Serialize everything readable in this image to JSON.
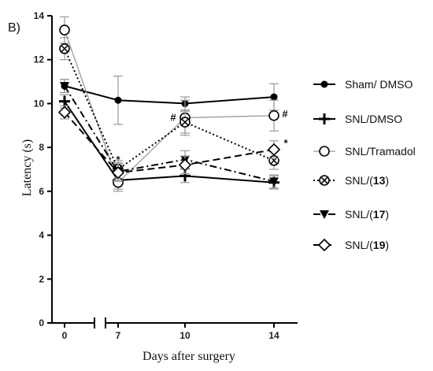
{
  "panel_label": "B)",
  "chart_data": {
    "type": "line",
    "x_positions": [
      0,
      7,
      10,
      14
    ],
    "x_tick_labels": [
      "0",
      "7",
      "10",
      "14"
    ],
    "xlabel": "Days after surgery",
    "ylabel": "Latency (s)",
    "ylim": [
      0,
      14
    ],
    "y_ticks": [
      "0",
      "2",
      "4",
      "6",
      "8",
      "10",
      "12",
      "14"
    ],
    "x_axis_break": "between 0 and 7",
    "grid": false,
    "legend_position": "right",
    "series": [
      {
        "name": "Sham/ DMSO",
        "marker": "filled-circle",
        "line_style": "solid",
        "color": "#000000",
        "values": [
          10.8,
          10.15,
          10.0,
          10.3
        ],
        "errors": [
          0.3,
          1.1,
          0.3,
          0.6
        ],
        "annotations": [
          "",
          "",
          "",
          ""
        ]
      },
      {
        "name": "SNL/DMSO",
        "marker": "plus",
        "line_style": "solid",
        "color": "#000000",
        "values": [
          10.1,
          6.5,
          6.7,
          6.4
        ],
        "errors": [
          0.3,
          0.4,
          0.3,
          0.3
        ],
        "annotations": [
          "",
          "",
          "",
          ""
        ]
      },
      {
        "name": "SNL/Tramadol",
        "marker": "open-circle",
        "line_style": "solid-gray",
        "color": "#999999",
        "values": [
          13.35,
          6.4,
          9.35,
          9.45
        ],
        "errors": [
          0.6,
          0.4,
          0.8,
          0.7
        ],
        "annotations": [
          "",
          "",
          "#",
          "#"
        ]
      },
      {
        "name": "SNL/(13)",
        "marker": "circle-x",
        "line_style": "dotted",
        "color": "#000000",
        "values": [
          12.5,
          7.0,
          9.15,
          7.4
        ],
        "errors": [
          0.5,
          0.4,
          0.5,
          0.4
        ],
        "annotations": [
          "",
          "*",
          "",
          ""
        ]
      },
      {
        "name": "SNL/(17)",
        "marker": "filled-triangle-down",
        "line_style": "dash-dot",
        "color": "#000000",
        "values": [
          10.8,
          6.9,
          7.45,
          6.45
        ],
        "errors": [
          0.3,
          0.4,
          0.4,
          0.3
        ],
        "annotations": [
          "",
          "",
          "",
          ""
        ]
      },
      {
        "name": "SNL/(19)",
        "marker": "open-diamond",
        "line_style": "dashed",
        "color": "#000000",
        "values": [
          9.6,
          6.85,
          7.2,
          7.9
        ],
        "errors": [
          0.3,
          0.4,
          0.4,
          0.4
        ],
        "annotations": [
          "",
          "",
          "",
          "*"
        ]
      }
    ]
  }
}
